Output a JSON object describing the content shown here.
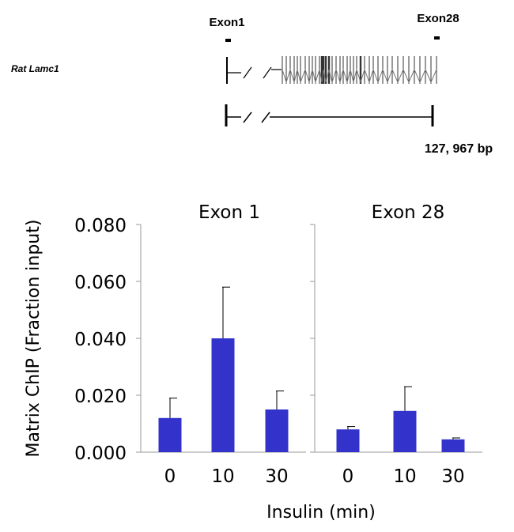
{
  "gene_diagram": {
    "gene_label": "Rat Lamc1",
    "exon_first_label": "Exon1",
    "exon_last_label": "Exon28",
    "length_label": "127, 967 bp"
  },
  "chart_data": {
    "type": "bar",
    "ylabel": "Matrix ChIP (Fraction input)",
    "xlabel": "Insulin (min)",
    "ylim": [
      0,
      0.08
    ],
    "y_ticks": [
      "0.000",
      "0.020",
      "0.040",
      "0.060",
      "0.080"
    ],
    "y_tick_values": [
      0,
      0.02,
      0.04,
      0.06,
      0.08
    ],
    "bar_color": "#3333cc",
    "grid": false,
    "panels": [
      {
        "title": "Exon 1",
        "categories": [
          "0",
          "10",
          "30"
        ],
        "values": [
          0.012,
          0.04,
          0.015
        ],
        "errors": [
          0.007,
          0.018,
          0.0065
        ]
      },
      {
        "title": "Exon 28",
        "categories": [
          "0",
          "10",
          "30"
        ],
        "values": [
          0.008,
          0.0145,
          0.0045
        ],
        "errors": [
          0.001,
          0.0085,
          0.0005
        ]
      }
    ]
  }
}
